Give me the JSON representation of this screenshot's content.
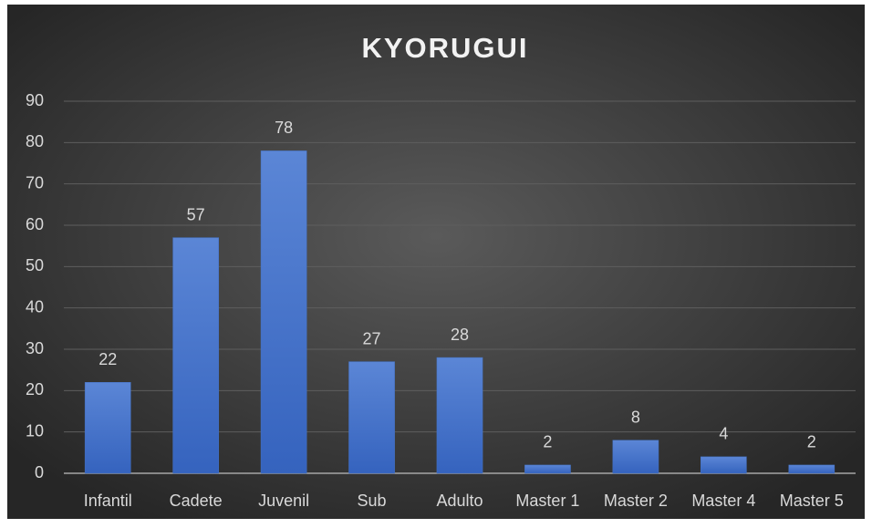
{
  "chart_data": {
    "type": "bar",
    "title": "KYORUGUI",
    "categories": [
      "Infantil",
      "Cadete",
      "Juvenil",
      "Sub",
      "Adulto",
      "Master 1",
      "Master 2",
      "Master 4",
      "Master 5"
    ],
    "values": [
      22,
      57,
      78,
      27,
      28,
      2,
      8,
      4,
      2
    ],
    "color": "#4472c4",
    "ylim": [
      0,
      90
    ],
    "yticks": [
      0,
      10,
      20,
      30,
      40,
      50,
      60,
      70,
      80,
      90
    ],
    "grid": true
  }
}
